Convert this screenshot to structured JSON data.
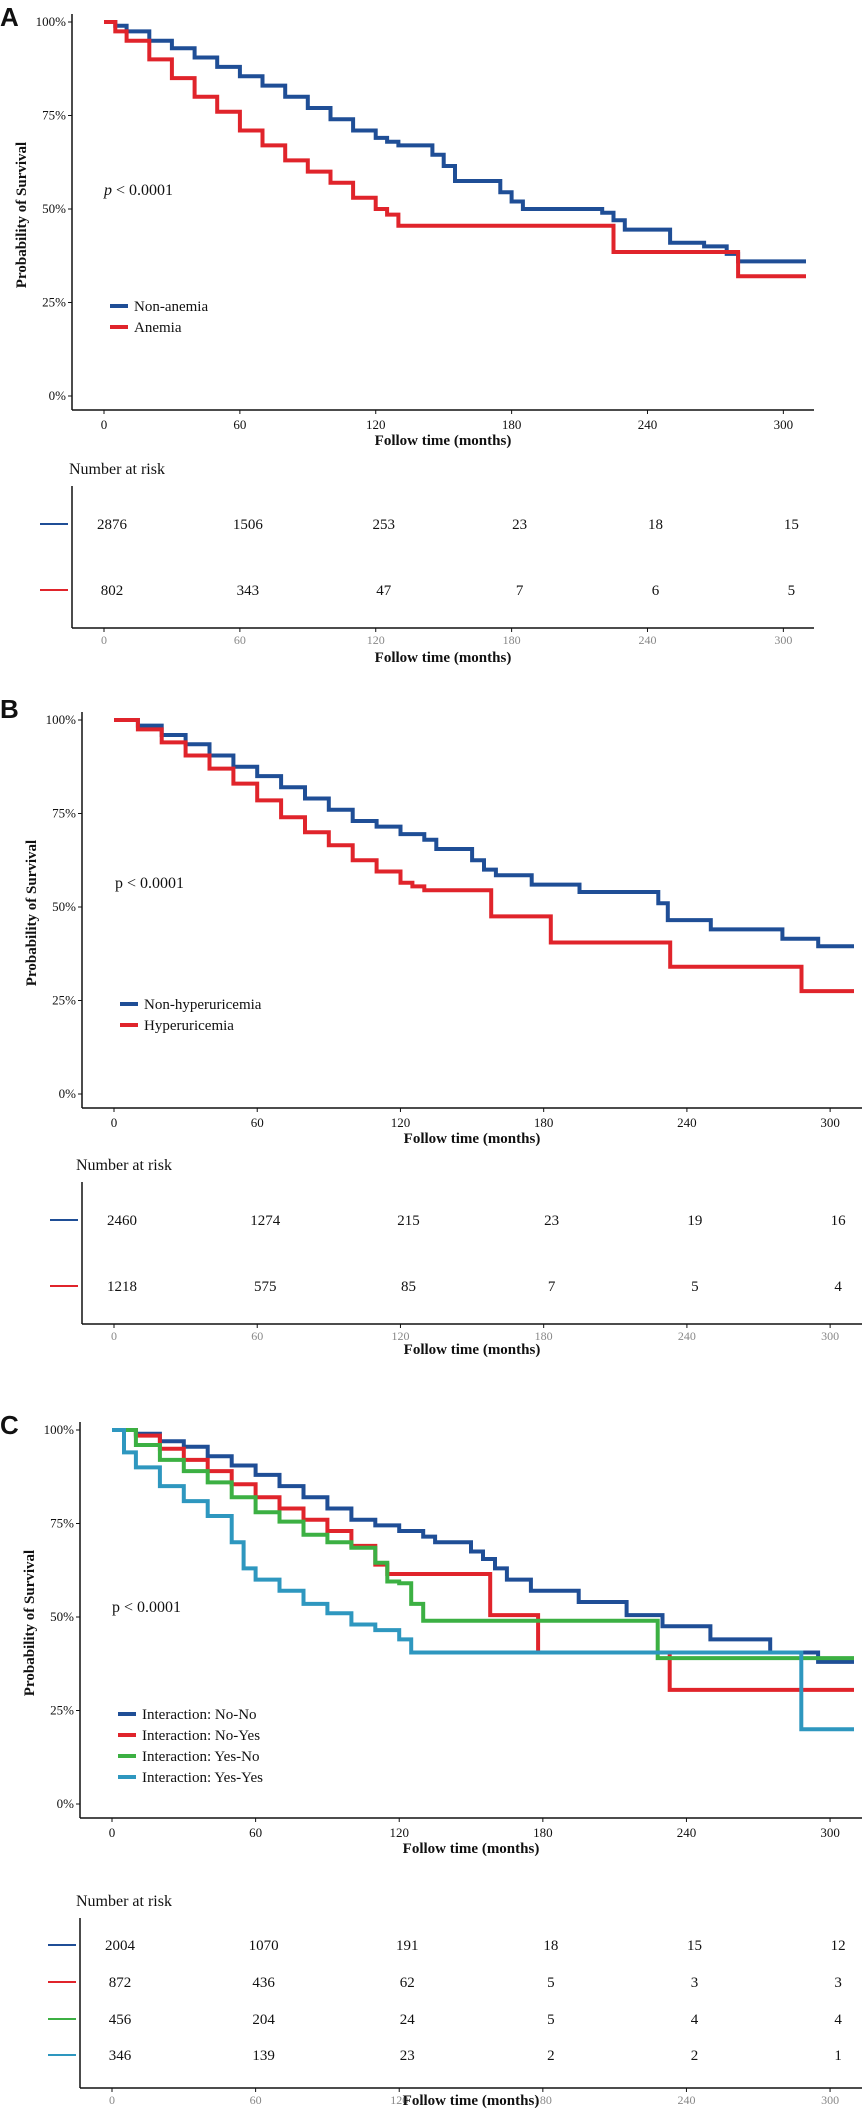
{
  "chart_data": [
    {
      "panel_label": "A",
      "type": "line",
      "subtype": "kaplan-meier",
      "ylabel": "Probability of Survival",
      "xlabel": "Follow time (months)",
      "x_ticks": [
        "0",
        "60",
        "120",
        "180",
        "240",
        "300"
      ],
      "y_ticks": [
        "0%",
        "25%",
        "50%",
        "75%",
        "100%"
      ],
      "xlim": [
        0,
        310
      ],
      "ylim": [
        0,
        1
      ],
      "p_prefix": "p",
      "p_value": "< 0.0001",
      "p_italic": true,
      "series": [
        {
          "name": "Non-anemia",
          "color": "#1f4e96",
          "points": [
            [
              0,
              1.0
            ],
            [
              5,
              0.99
            ],
            [
              10,
              0.975
            ],
            [
              20,
              0.95
            ],
            [
              30,
              0.93
            ],
            [
              40,
              0.905
            ],
            [
              50,
              0.88
            ],
            [
              60,
              0.855
            ],
            [
              70,
              0.83
            ],
            [
              80,
              0.8
            ],
            [
              90,
              0.77
            ],
            [
              100,
              0.74
            ],
            [
              110,
              0.71
            ],
            [
              120,
              0.69
            ],
            [
              125,
              0.68
            ],
            [
              130,
              0.67
            ],
            [
              140,
              0.67
            ],
            [
              145,
              0.645
            ],
            [
              150,
              0.615
            ],
            [
              155,
              0.575
            ],
            [
              170,
              0.575
            ],
            [
              175,
              0.545
            ],
            [
              180,
              0.52
            ],
            [
              185,
              0.5
            ],
            [
              200,
              0.5
            ],
            [
              220,
              0.49
            ],
            [
              225,
              0.47
            ],
            [
              230,
              0.445
            ],
            [
              245,
              0.445
            ],
            [
              250,
              0.41
            ],
            [
              265,
              0.4
            ],
            [
              275,
              0.38
            ],
            [
              280,
              0.36
            ],
            [
              310,
              0.36
            ]
          ]
        },
        {
          "name": "Anemia",
          "color": "#e0242b",
          "points": [
            [
              0,
              1.0
            ],
            [
              5,
              0.975
            ],
            [
              10,
              0.95
            ],
            [
              20,
              0.9
            ],
            [
              30,
              0.85
            ],
            [
              40,
              0.8
            ],
            [
              50,
              0.76
            ],
            [
              60,
              0.71
            ],
            [
              70,
              0.67
            ],
            [
              80,
              0.63
            ],
            [
              90,
              0.6
            ],
            [
              100,
              0.57
            ],
            [
              110,
              0.53
            ],
            [
              120,
              0.5
            ],
            [
              125,
              0.485
            ],
            [
              130,
              0.455
            ],
            [
              220,
              0.455
            ],
            [
              225,
              0.385
            ],
            [
              275,
              0.385
            ],
            [
              280,
              0.32
            ],
            [
              310,
              0.32
            ]
          ]
        }
      ],
      "risk_table": {
        "title": "Number at risk",
        "x": [
          0,
          60,
          120,
          180,
          240,
          300
        ],
        "x_ticks": [
          "0",
          "60",
          "120",
          "180",
          "240",
          "300"
        ],
        "xlabel": "Follow time (months)",
        "rows": [
          {
            "name": "Non-anemia",
            "color": "#1f4e96",
            "values": [
              "2876",
              "1506",
              "253",
              "23",
              "18",
              "15"
            ]
          },
          {
            "name": "Anemia",
            "color": "#e0242b",
            "values": [
              "802",
              "343",
              "47",
              "7",
              "6",
              "5"
            ]
          }
        ]
      }
    },
    {
      "panel_label": "B",
      "type": "line",
      "subtype": "kaplan-meier",
      "ylabel": "Probability of Survival",
      "xlabel": "Follow time (months)",
      "x_ticks": [
        "0",
        "60",
        "120",
        "180",
        "240",
        "300"
      ],
      "y_ticks": [
        "0%",
        "25%",
        "50%",
        "75%",
        "100%"
      ],
      "xlim": [
        0,
        310
      ],
      "ylim": [
        0,
        1
      ],
      "p_prefix": "p",
      "p_value": "< 0.0001",
      "p_italic": false,
      "series": [
        {
          "name": "Non-hyperuricemia",
          "color": "#1f4e96",
          "points": [
            [
              0,
              1.0
            ],
            [
              10,
              0.985
            ],
            [
              20,
              0.96
            ],
            [
              30,
              0.935
            ],
            [
              40,
              0.905
            ],
            [
              50,
              0.875
            ],
            [
              60,
              0.85
            ],
            [
              70,
              0.82
            ],
            [
              80,
              0.79
            ],
            [
              90,
              0.76
            ],
            [
              100,
              0.73
            ],
            [
              110,
              0.715
            ],
            [
              120,
              0.695
            ],
            [
              130,
              0.68
            ],
            [
              135,
              0.655
            ],
            [
              145,
              0.655
            ],
            [
              150,
              0.625
            ],
            [
              155,
              0.6
            ],
            [
              160,
              0.585
            ],
            [
              170,
              0.585
            ],
            [
              175,
              0.56
            ],
            [
              190,
              0.56
            ],
            [
              195,
              0.54
            ],
            [
              225,
              0.54
            ],
            [
              228,
              0.51
            ],
            [
              232,
              0.465
            ],
            [
              245,
              0.465
            ],
            [
              250,
              0.44
            ],
            [
              275,
              0.44
            ],
            [
              280,
              0.415
            ],
            [
              290,
              0.415
            ],
            [
              295,
              0.395
            ],
            [
              310,
              0.395
            ]
          ]
        },
        {
          "name": "Hyperuricemia",
          "color": "#e0242b",
          "points": [
            [
              0,
              1.0
            ],
            [
              10,
              0.975
            ],
            [
              20,
              0.94
            ],
            [
              30,
              0.905
            ],
            [
              40,
              0.87
            ],
            [
              50,
              0.83
            ],
            [
              60,
              0.785
            ],
            [
              70,
              0.74
            ],
            [
              80,
              0.7
            ],
            [
              90,
              0.665
            ],
            [
              100,
              0.625
            ],
            [
              110,
              0.595
            ],
            [
              120,
              0.565
            ],
            [
              125,
              0.555
            ],
            [
              130,
              0.545
            ],
            [
              155,
              0.545
            ],
            [
              158,
              0.475
            ],
            [
              180,
              0.475
            ],
            [
              183,
              0.405
            ],
            [
              230,
              0.405
            ],
            [
              233,
              0.34
            ],
            [
              285,
              0.34
            ],
            [
              288,
              0.275
            ],
            [
              310,
              0.275
            ]
          ]
        }
      ],
      "risk_table": {
        "title": "Number at risk",
        "x": [
          0,
          60,
          120,
          180,
          240,
          300
        ],
        "x_ticks": [
          "0",
          "60",
          "120",
          "180",
          "240",
          "300"
        ],
        "xlabel": "Follow time (months)",
        "rows": [
          {
            "name": "Non-hyperuricemia",
            "color": "#1f4e96",
            "values": [
              "2460",
              "1274",
              "215",
              "23",
              "19",
              "16"
            ]
          },
          {
            "name": "Hyperuricemia",
            "color": "#e0242b",
            "values": [
              "1218",
              "575",
              "85",
              "7",
              "5",
              "4"
            ]
          }
        ]
      }
    },
    {
      "panel_label": "C",
      "type": "line",
      "subtype": "kaplan-meier",
      "ylabel": "Probability of Survival",
      "xlabel": "Follow time (months)",
      "x_ticks": [
        "0",
        "60",
        "120",
        "180",
        "240",
        "300"
      ],
      "y_ticks": [
        "0%",
        "25%",
        "50%",
        "75%",
        "100%"
      ],
      "xlim": [
        0,
        310
      ],
      "ylim": [
        0,
        1
      ],
      "p_prefix": "p",
      "p_value": "< 0.0001",
      "p_italic": false,
      "series": [
        {
          "name": "Interaction: No-No",
          "color": "#1f4e96",
          "points": [
            [
              0,
              1.0
            ],
            [
              10,
              0.99
            ],
            [
              20,
              0.97
            ],
            [
              30,
              0.955
            ],
            [
              40,
              0.93
            ],
            [
              50,
              0.905
            ],
            [
              60,
              0.88
            ],
            [
              70,
              0.85
            ],
            [
              80,
              0.82
            ],
            [
              90,
              0.79
            ],
            [
              100,
              0.76
            ],
            [
              110,
              0.745
            ],
            [
              120,
              0.73
            ],
            [
              130,
              0.715
            ],
            [
              135,
              0.7
            ],
            [
              145,
              0.7
            ],
            [
              150,
              0.675
            ],
            [
              155,
              0.655
            ],
            [
              160,
              0.63
            ],
            [
              165,
              0.6
            ],
            [
              170,
              0.6
            ],
            [
              175,
              0.57
            ],
            [
              190,
              0.57
            ],
            [
              195,
              0.54
            ],
            [
              210,
              0.54
            ],
            [
              215,
              0.505
            ],
            [
              225,
              0.505
            ],
            [
              230,
              0.475
            ],
            [
              245,
              0.475
            ],
            [
              250,
              0.44
            ],
            [
              270,
              0.44
            ],
            [
              275,
              0.405
            ],
            [
              290,
              0.405
            ],
            [
              295,
              0.38
            ],
            [
              310,
              0.38
            ]
          ]
        },
        {
          "name": "Interaction: No-Yes",
          "color": "#e0242b",
          "points": [
            [
              0,
              1.0
            ],
            [
              10,
              0.985
            ],
            [
              20,
              0.95
            ],
            [
              30,
              0.92
            ],
            [
              40,
              0.89
            ],
            [
              50,
              0.855
            ],
            [
              60,
              0.82
            ],
            [
              70,
              0.79
            ],
            [
              80,
              0.76
            ],
            [
              90,
              0.73
            ],
            [
              100,
              0.69
            ],
            [
              110,
              0.64
            ],
            [
              115,
              0.615
            ],
            [
              155,
              0.615
            ],
            [
              158,
              0.505
            ],
            [
              175,
              0.505
            ],
            [
              178,
              0.405
            ],
            [
              230,
              0.405
            ],
            [
              233,
              0.305
            ],
            [
              310,
              0.305
            ]
          ]
        },
        {
          "name": "Interaction: Yes-No",
          "color": "#3cb043",
          "points": [
            [
              0,
              1.0
            ],
            [
              10,
              0.96
            ],
            [
              20,
              0.92
            ],
            [
              30,
              0.89
            ],
            [
              40,
              0.86
            ],
            [
              50,
              0.82
            ],
            [
              60,
              0.78
            ],
            [
              70,
              0.755
            ],
            [
              80,
              0.72
            ],
            [
              90,
              0.7
            ],
            [
              100,
              0.685
            ],
            [
              110,
              0.645
            ],
            [
              115,
              0.595
            ],
            [
              120,
              0.59
            ],
            [
              125,
              0.535
            ],
            [
              130,
              0.49
            ],
            [
              225,
              0.49
            ],
            [
              228,
              0.39
            ],
            [
              310,
              0.39
            ]
          ]
        },
        {
          "name": "Interaction: Yes-Yes",
          "color": "#2e97bf",
          "points": [
            [
              0,
              1.0
            ],
            [
              5,
              0.94
            ],
            [
              10,
              0.9
            ],
            [
              20,
              0.85
            ],
            [
              30,
              0.81
            ],
            [
              40,
              0.77
            ],
            [
              50,
              0.7
            ],
            [
              55,
              0.63
            ],
            [
              60,
              0.6
            ],
            [
              70,
              0.57
            ],
            [
              80,
              0.535
            ],
            [
              90,
              0.51
            ],
            [
              100,
              0.48
            ],
            [
              110,
              0.465
            ],
            [
              120,
              0.44
            ],
            [
              125,
              0.405
            ],
            [
              285,
              0.405
            ],
            [
              288,
              0.2
            ],
            [
              310,
              0.2
            ]
          ]
        }
      ],
      "risk_table": {
        "title": "Number at risk",
        "x": [
          0,
          60,
          120,
          180,
          240,
          300
        ],
        "x_ticks": [
          "0",
          "60",
          "120",
          "180",
          "240",
          "300"
        ],
        "xlabel": "Follow time (months)",
        "rows": [
          {
            "name": "Interaction: No-No",
            "color": "#1f4e96",
            "values": [
              "2004",
              "1070",
              "191",
              "18",
              "15",
              "12"
            ]
          },
          {
            "name": "Interaction: No-Yes",
            "color": "#e0242b",
            "values": [
              "872",
              "436",
              "62",
              "5",
              "3",
              "3"
            ]
          },
          {
            "name": "Interaction: Yes-No",
            "color": "#3cb043",
            "values": [
              "456",
              "204",
              "24",
              "5",
              "4",
              "4"
            ]
          },
          {
            "name": "Interaction: Yes-Yes",
            "color": "#2e97bf",
            "values": [
              "346",
              "139",
              "23",
              "2",
              "2",
              "1"
            ]
          }
        ]
      }
    }
  ]
}
